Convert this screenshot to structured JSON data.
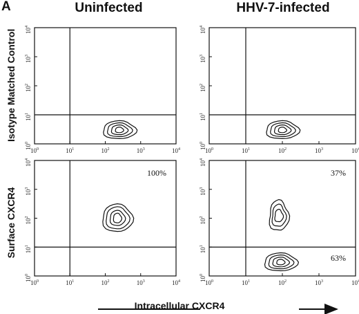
{
  "figure": {
    "panel_letter": "A",
    "columns": [
      "Uninfected",
      "HHV-7-infected"
    ],
    "rows": [
      "Isotype Matched Control",
      "Surface CXCR4"
    ],
    "x_axis_label": "Intracellular CXCR4",
    "tick_base": "10",
    "tick_exponents": [
      "0",
      "1",
      "2",
      "3",
      "4"
    ]
  },
  "chart_data": [
    {
      "type": "contour",
      "column": "Uninfected",
      "row": "Isotype Matched Control",
      "xlabel": "Intracellular CXCR4",
      "ylabel": "Isotype Matched Control",
      "xscale": "log",
      "yscale": "log",
      "xlim": [
        1,
        10000
      ],
      "ylim": [
        1,
        10000
      ],
      "quadrant_gate": {
        "x": 10,
        "y": 10
      },
      "population_center": {
        "x": 250,
        "y": 3
      },
      "annotations": []
    },
    {
      "type": "contour",
      "column": "HHV-7-infected",
      "row": "Isotype Matched Control",
      "xlabel": "Intracellular CXCR4",
      "ylabel": "Isotype Matched Control",
      "xscale": "log",
      "yscale": "log",
      "xlim": [
        1,
        10000
      ],
      "ylim": [
        1,
        10000
      ],
      "quadrant_gate": {
        "x": 10,
        "y": 10
      },
      "population_center": {
        "x": 100,
        "y": 3
      },
      "annotations": []
    },
    {
      "type": "contour",
      "column": "Uninfected",
      "row": "Surface CXCR4",
      "xlabel": "Intracellular CXCR4",
      "ylabel": "Surface CXCR4",
      "xscale": "log",
      "yscale": "log",
      "xlim": [
        1,
        10000
      ],
      "ylim": [
        1,
        10000
      ],
      "quadrant_gate": {
        "x": 10,
        "y": 10
      },
      "population_center": {
        "x": 220,
        "y": 100
      },
      "annotations": [
        {
          "text": "100%",
          "quadrant": "upper-right"
        }
      ]
    },
    {
      "type": "contour",
      "column": "HHV-7-infected",
      "row": "Surface CXCR4",
      "xlabel": "Intracellular CXCR4",
      "ylabel": "Surface CXCR4",
      "xscale": "log",
      "yscale": "log",
      "xlim": [
        1,
        10000
      ],
      "ylim": [
        1,
        10000
      ],
      "quadrant_gate": {
        "x": 10,
        "y": 10
      },
      "population_center": {
        "x": 90,
        "y": 3
      },
      "annotations": [
        {
          "text": "37%",
          "quadrant": "upper-right"
        },
        {
          "text": "63%",
          "quadrant": "lower-right"
        }
      ]
    }
  ]
}
